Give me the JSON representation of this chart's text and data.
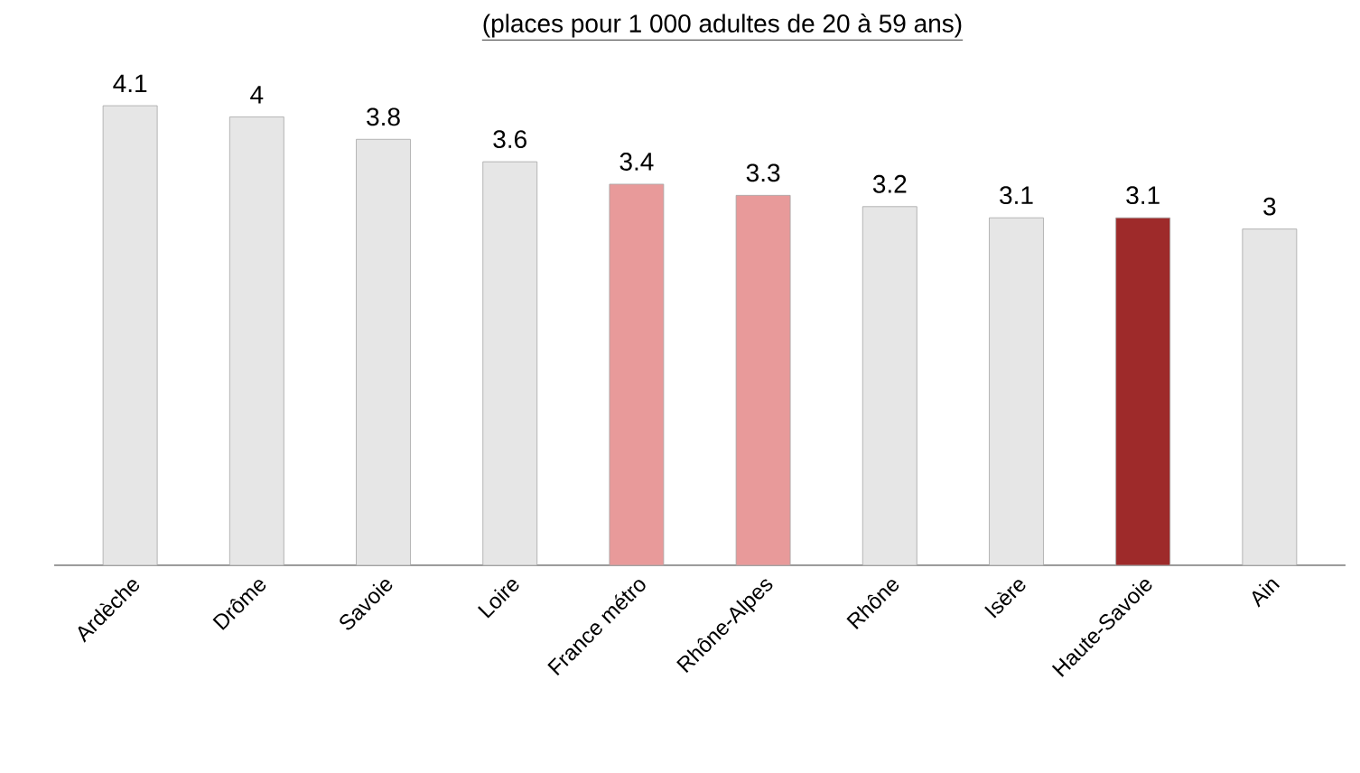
{
  "chart_data": {
    "type": "bar",
    "title": "(places pour 1 000 adultes de 20 à 59 ans)",
    "categories": [
      "Ardèche",
      "Drôme",
      "Savoie",
      "Loire",
      "France métro",
      "Rhône-Alpes",
      "Rhône",
      "Isère",
      "Haute-Savoie",
      "Ain"
    ],
    "values": [
      4.1,
      4,
      3.8,
      3.6,
      3.4,
      3.3,
      3.2,
      3.1,
      3.1,
      3
    ],
    "colors": [
      "#e6e6e6",
      "#e6e6e6",
      "#e6e6e6",
      "#e6e6e6",
      "#e89a9a",
      "#e89a9a",
      "#e6e6e6",
      "#e6e6e6",
      "#9e2a2a",
      "#e6e6e6"
    ],
    "data_labels": true
  }
}
